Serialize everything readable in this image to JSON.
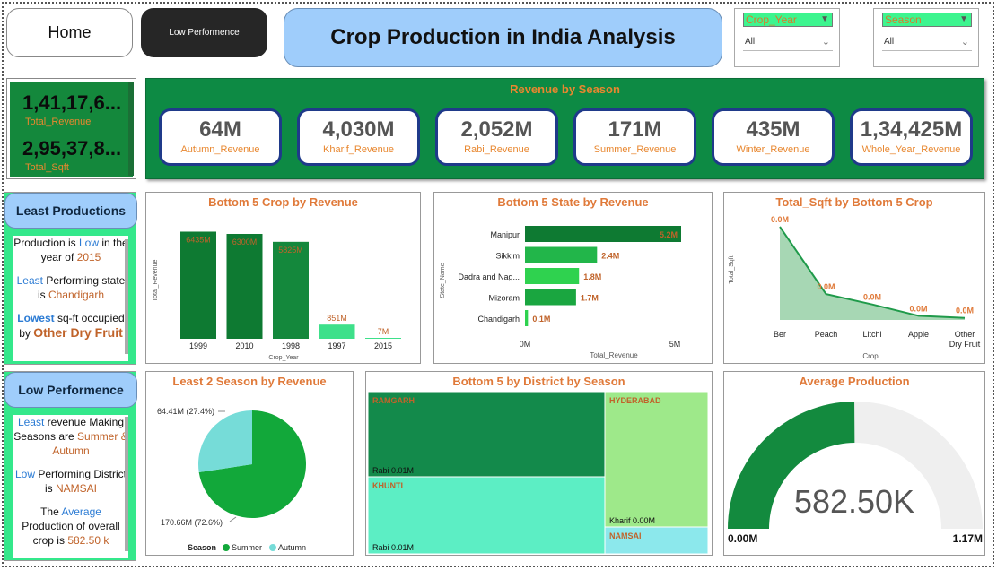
{
  "nav": {
    "home_label": "Home",
    "low_perf_label": "Low Performence"
  },
  "header": {
    "title": "Crop Production in India Analysis"
  },
  "slicers": [
    {
      "header": "Crop_Year",
      "value": "All"
    },
    {
      "header": "Season",
      "value": "All"
    }
  ],
  "kpis": {
    "total_revenue_value": "1,41,17,6...",
    "total_revenue_label": "Total_Revenue",
    "total_sqft_value": "2,95,37,8...",
    "total_sqft_label": "Total_Sqft"
  },
  "season_revenue": {
    "title": "Revenue by Season",
    "cards": [
      {
        "value": "64M",
        "label": "Autumn_Revenue"
      },
      {
        "value": "4,030M",
        "label": "Kharif_Revenue"
      },
      {
        "value": "2,052M",
        "label": "Rabi_Revenue"
      },
      {
        "value": "171M",
        "label": "Summer_Revenue"
      },
      {
        "value": "435M",
        "label": "Winter_Revenue"
      },
      {
        "value": "1,34,425M",
        "label": "Whole_Year_Revenue"
      }
    ]
  },
  "least_productions": {
    "title": "Least Productions",
    "lines": [
      {
        "a": "Production is ",
        "b": "Low",
        "c": " in the year of ",
        "d": "2015"
      },
      {
        "a": "",
        "b": "Least",
        "c": " Performing state is ",
        "d": "Chandigarh"
      },
      {
        "a": "",
        "b": "Lowest",
        "c": " sq-ft occupied by ",
        "d": "Other Dry Fruit"
      }
    ]
  },
  "low_performence": {
    "title": "Low Performence",
    "lines": [
      {
        "a": "",
        "b": "Least",
        "c": " revenue Making Seasons are ",
        "d": "Summer & Autumn"
      },
      {
        "a": "",
        "b": "Low",
        "c": " Performing District  is ",
        "d": "NAMSAI"
      },
      {
        "a": "The ",
        "b": "Average",
        "c": " Production of overall crop is ",
        "d": "582.50 k"
      }
    ]
  },
  "chart_data": [
    {
      "type": "bar",
      "title": "Bottom 5 Crop by Revenue",
      "xlabel": "Crop_Year",
      "ylabel": "Total_Revenue",
      "categories": [
        "1999",
        "2010",
        "1998",
        "1997",
        "2015"
      ],
      "values": [
        6435,
        6300,
        5825,
        851,
        7
      ],
      "data_labels": [
        "6435M",
        "6300M",
        "5825M",
        "851M",
        "7M"
      ],
      "colors": [
        "#0e7a32",
        "#0e7a32",
        "#14883c",
        "#3ee08a",
        "#3ee08a"
      ],
      "ylim": [
        0,
        7000
      ]
    },
    {
      "type": "bar",
      "orientation": "horizontal",
      "title": "Bottom 5 State by Revenue",
      "xlabel": "Total_Revenue",
      "ylabel": "State_Name",
      "categories": [
        "Manipur",
        "Sikkim",
        "Dadra and Nag...",
        "Mizoram",
        "Chandigarh"
      ],
      "values": [
        5.2,
        2.4,
        1.8,
        1.7,
        0.1
      ],
      "data_labels": [
        "5.2M",
        "2.4M",
        "1.8M",
        "1.7M",
        "0.1M"
      ],
      "colors": [
        "#0e7a32",
        "#22b64a",
        "#2fd24f",
        "#1aa640",
        "#2fd24f"
      ],
      "ticks": [
        "0M",
        "5M"
      ],
      "xlim": [
        0,
        5.2
      ]
    },
    {
      "type": "area",
      "title": "Total_Sqft by Bottom 5 Crop",
      "xlabel": "Crop",
      "ylabel": "Total_Sqft",
      "categories": [
        "Ber",
        "Peach",
        "Litchi",
        "Apple",
        "Other Dry Fruit"
      ],
      "values": [
        0.09,
        0.025,
        0.015,
        0.004,
        0.002
      ],
      "data_labels": [
        "0.0M",
        "0.0M",
        "0.0M",
        "0.0M",
        "0.0M"
      ],
      "color": "#1f9a4a"
    },
    {
      "type": "pie",
      "title": "Least 2 Season by Revenue",
      "legend_title": "Season",
      "slices": [
        {
          "name": "Summer",
          "value": 170.66,
          "label": "170.66M (72.6%)",
          "color": "#12a83a"
        },
        {
          "name": "Autumn",
          "value": 64.41,
          "label": "64.41M (27.4%)",
          "color": "#76dcd8"
        }
      ]
    },
    {
      "type": "treemap",
      "title": "Bottom 5 by District by Season",
      "items": [
        {
          "district": "RAMGARH",
          "season_label": "Rabi 0.01M",
          "color": "#138a4b"
        },
        {
          "district": "KHUNTI",
          "season_label": "Rabi 0.01M",
          "color": "#5ceec4"
        },
        {
          "district": "HYDERABAD",
          "season_label": "Kharif 0.00M",
          "color": "#9ee98a"
        },
        {
          "district": "NAMSAI",
          "season_label": "",
          "color": "#8ce8ec"
        }
      ]
    },
    {
      "type": "gauge",
      "title": "Average Production",
      "value": 582.5,
      "value_label": "582.50K",
      "min_label": "0.00M",
      "max_label": "1.17M",
      "min": 0,
      "max": 1170,
      "fill_color": "#138a3e",
      "track_color": "#efefef"
    }
  ]
}
